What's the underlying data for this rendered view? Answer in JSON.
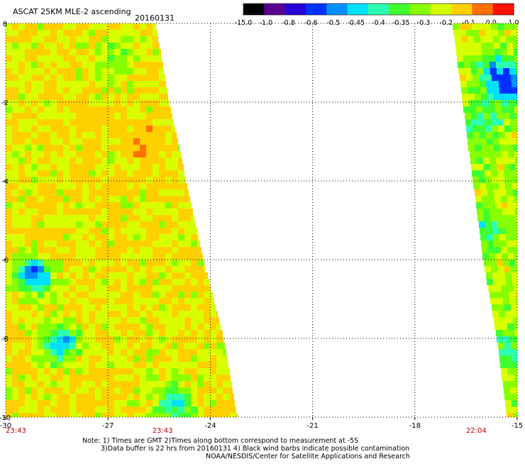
{
  "header": {
    "title": "ASCAT 25KM MLE-2 ascending",
    "date": "20160131"
  },
  "colorbar": {
    "labels": [
      "-15.0",
      "-1.0",
      "-0.8",
      "-0.6",
      "-0.5",
      "-0.45",
      "-0.4",
      "-0.35",
      "-0.3",
      "-0.2",
      "-0.1",
      "0.0",
      "1.0"
    ],
    "colors": [
      "#000000",
      "#5a0090",
      "#2a00d8",
      "#0032ff",
      "#0090ff",
      "#00e0ff",
      "#2dffb0",
      "#40ff30",
      "#88ff00",
      "#d8ff00",
      "#ffd000",
      "#ff7000",
      "#ff1000"
    ]
  },
  "chart_data": {
    "type": "heatmap",
    "title": "ASCAT 25KM MLE-2 ascending 20160131",
    "xlabel": "",
    "ylabel": "",
    "xlim": [
      -30,
      -15
    ],
    "ylim": [
      -10,
      0
    ],
    "x_ticks": [
      "-30",
      "-27",
      "-24",
      "-21",
      "-18",
      "-15"
    ],
    "y_ticks": [
      "0",
      "-2",
      "-4",
      "-6",
      "-8",
      "-10"
    ],
    "grid": true,
    "swaths": [
      {
        "name": "west swath",
        "time_label": "23:43",
        "time_label_x": -29.7,
        "time_label_2": "23:43",
        "time_label_2_x": -25.4,
        "west_edge_lon": -30,
        "east_edge": [
          [
            0,
            -25.6
          ],
          [
            -2,
            -25.2
          ],
          [
            -4,
            -24.7
          ],
          [
            -6,
            -24.2
          ],
          [
            -8,
            -23.6
          ],
          [
            -10,
            -23.2
          ]
        ],
        "base_value": -0.3,
        "anomalies": [
          {
            "lon": -29.2,
            "lat": -6.4,
            "value": -0.6
          },
          {
            "lon": -28.4,
            "lat": -8.1,
            "value": -0.55
          },
          {
            "lon": -25.1,
            "lat": -9.7,
            "value": -0.5
          },
          {
            "lon": -26.0,
            "lat": -3.0,
            "value": -0.2
          },
          {
            "lon": -27.5,
            "lat": -2.5,
            "value": -0.25
          },
          {
            "lon": -26.8,
            "lat": -0.8,
            "value": -0.4
          }
        ]
      },
      {
        "name": "east swath",
        "time_label": "22:04",
        "time_label_x": -16.2,
        "west_edge": [
          [
            0,
            -16.9
          ],
          [
            -2,
            -16.6
          ],
          [
            -4,
            -16.3
          ],
          [
            -6,
            -16.0
          ],
          [
            -8,
            -15.6
          ],
          [
            -10,
            -15.3
          ]
        ],
        "east_edge_lon": -15,
        "base_value": -0.35,
        "anomalies": [
          {
            "lon": -15.3,
            "lat": -1.6,
            "value": -0.6
          },
          {
            "lon": -16.0,
            "lat": -2.6,
            "value": -0.45
          },
          {
            "lon": -16.2,
            "lat": -5.2,
            "value": -0.5
          },
          {
            "lon": -15.4,
            "lat": -8.3,
            "value": -0.45
          },
          {
            "lon": -15.6,
            "lat": -1.2,
            "value": -0.5
          }
        ]
      }
    ]
  },
  "notes": {
    "line1": "Note: 1) Times are GMT 2)Times along bottom correspond to measurement at -5S",
    "line2": "3)Data buffer is 22 hrs from 20160131 4) Black wind barbs indicate possible contamination",
    "line3": "NOAA/NESDIS/Center for Satellite Applications and Research"
  }
}
